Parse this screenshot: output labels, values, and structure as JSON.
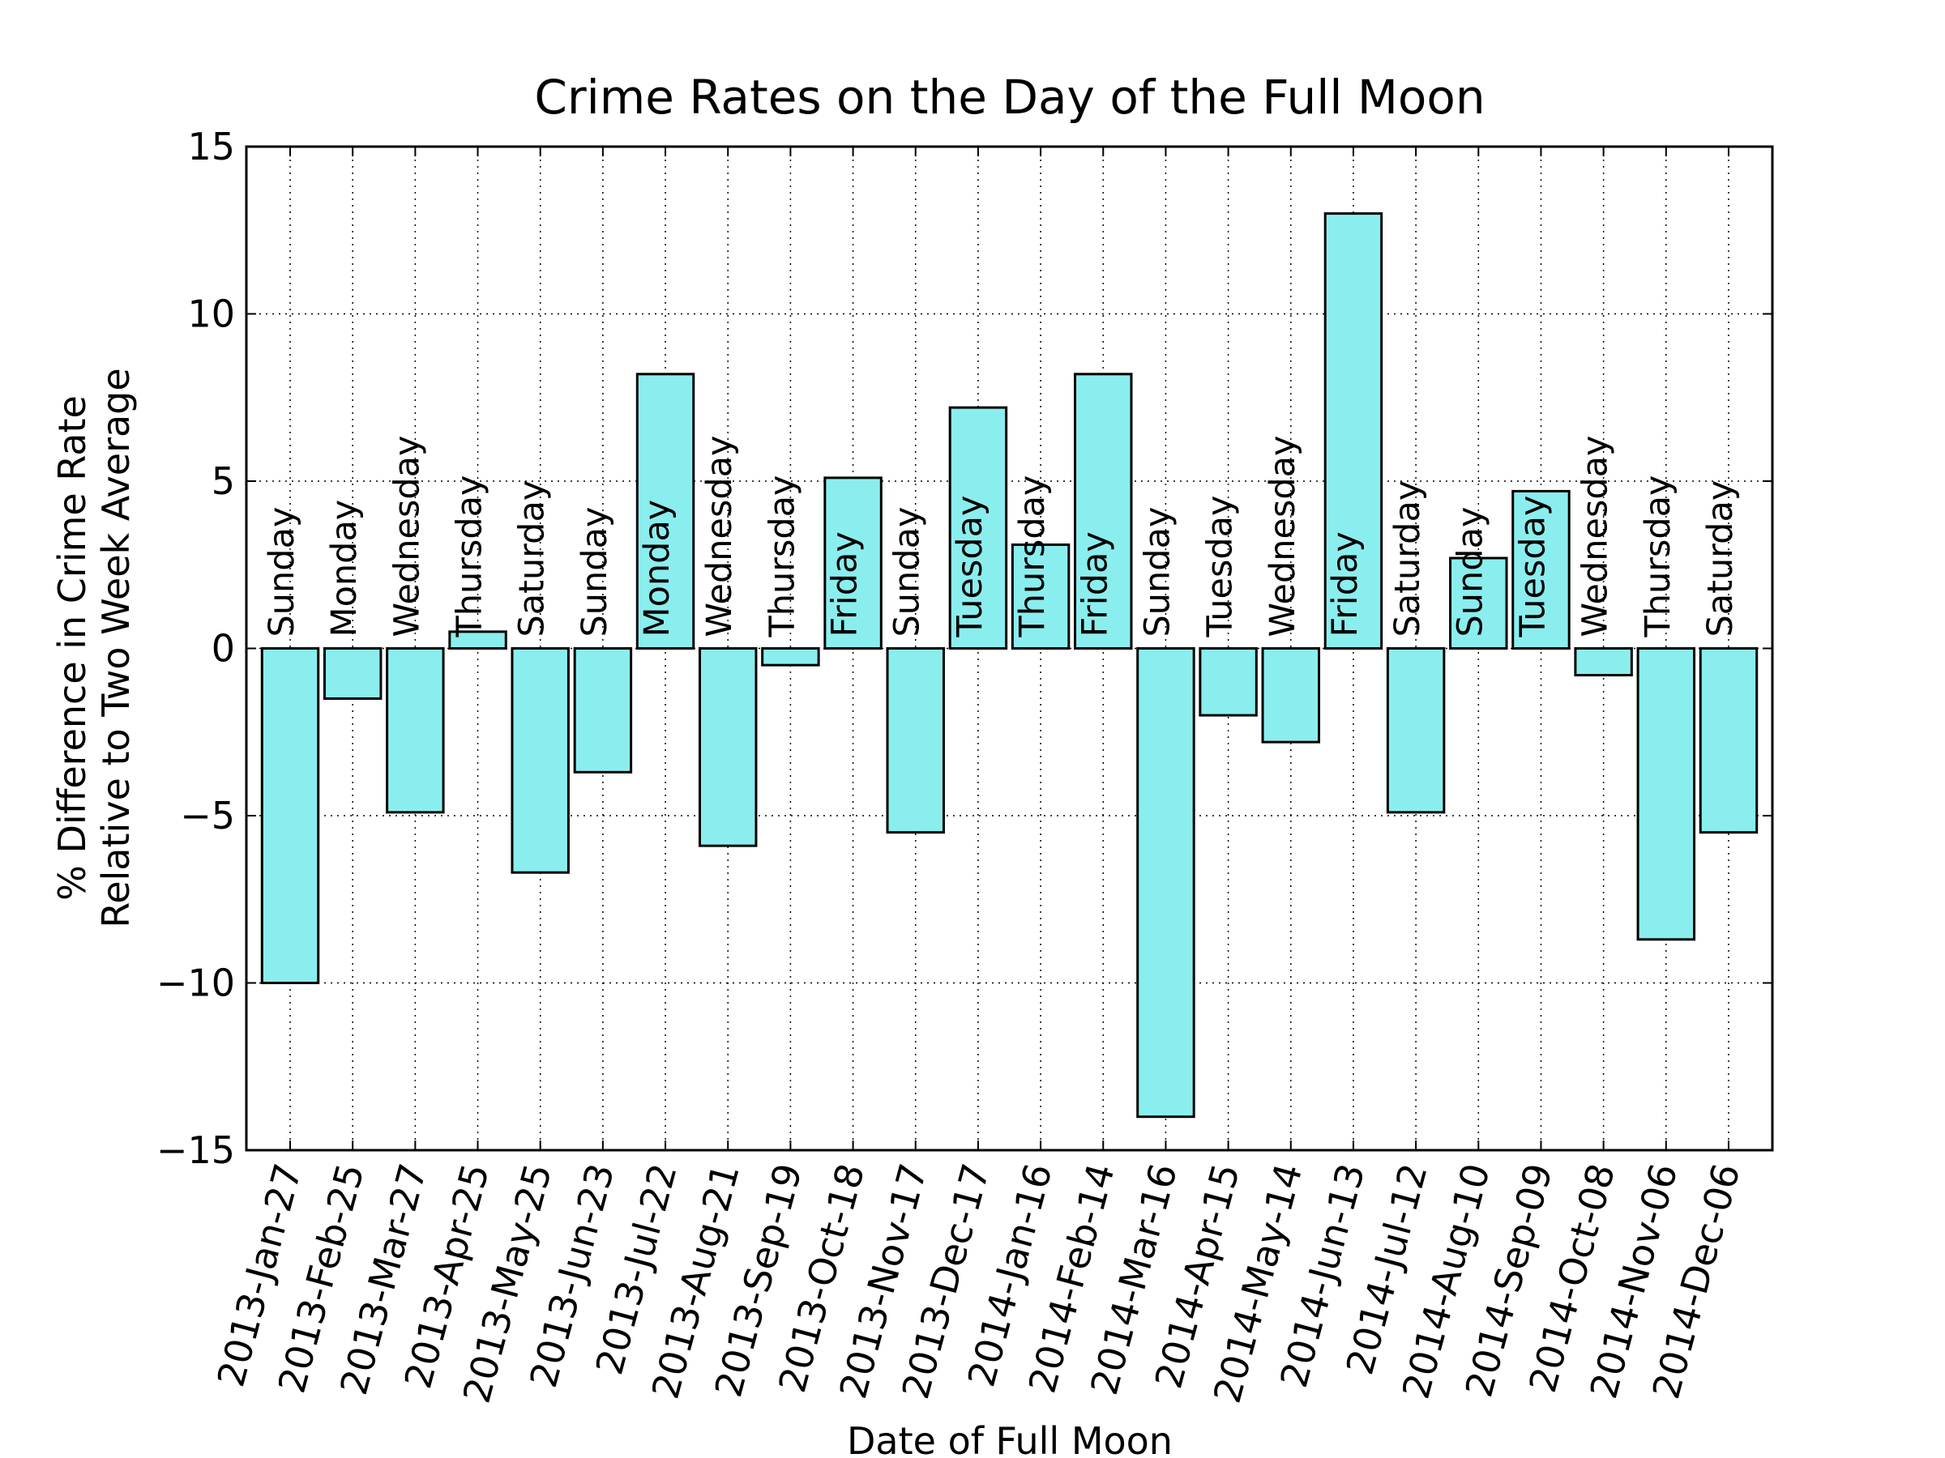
{
  "chart_data": {
    "type": "bar",
    "title": "Crime Rates on the Day of the Full Moon",
    "xlabel": "Date of Full Moon",
    "ylabel": [
      "% Difference in Crime Rate",
      "Relative to Two Week Average"
    ],
    "categories": [
      "2013-Jan-27",
      "2013-Feb-25",
      "2013-Mar-27",
      "2013-Apr-25",
      "2013-May-25",
      "2013-Jun-23",
      "2013-Jul-22",
      "2013-Aug-21",
      "2013-Sep-19",
      "2013-Oct-18",
      "2013-Nov-17",
      "2013-Dec-17",
      "2014-Jan-16",
      "2014-Feb-14",
      "2014-Mar-16",
      "2014-Apr-15",
      "2014-May-14",
      "2014-Jun-13",
      "2014-Jul-12",
      "2014-Aug-10",
      "2014-Sep-09",
      "2014-Oct-08",
      "2014-Nov-06",
      "2014-Dec-06"
    ],
    "bar_labels": [
      "Sunday",
      "Monday",
      "Wednesday",
      "Thursday",
      "Saturday",
      "Sunday",
      "Monday",
      "Wednesday",
      "Thursday",
      "Friday",
      "Sunday",
      "Tuesday",
      "Thursday",
      "Friday",
      "Sunday",
      "Tuesday",
      "Wednesday",
      "Friday",
      "Saturday",
      "Sunday",
      "Tuesday",
      "Wednesday",
      "Thursday",
      "Saturday"
    ],
    "values": [
      -10.0,
      -1.5,
      -4.9,
      0.5,
      -6.7,
      -3.7,
      8.2,
      -5.9,
      -0.5,
      5.1,
      -5.5,
      7.2,
      3.1,
      8.2,
      -14.0,
      -2.0,
      -2.8,
      13.0,
      -4.9,
      2.7,
      4.7,
      -0.8,
      -8.7,
      -5.5
    ],
    "color": "#8beeee",
    "edgecolor": "#000000",
    "ylim": [
      -15,
      15
    ],
    "yticks": [
      {
        "value": -15,
        "label": "−15"
      },
      {
        "value": -10,
        "label": "−10"
      },
      {
        "value": -5,
        "label": "−5"
      },
      0,
      5,
      10,
      15
    ],
    "grid": true
  }
}
